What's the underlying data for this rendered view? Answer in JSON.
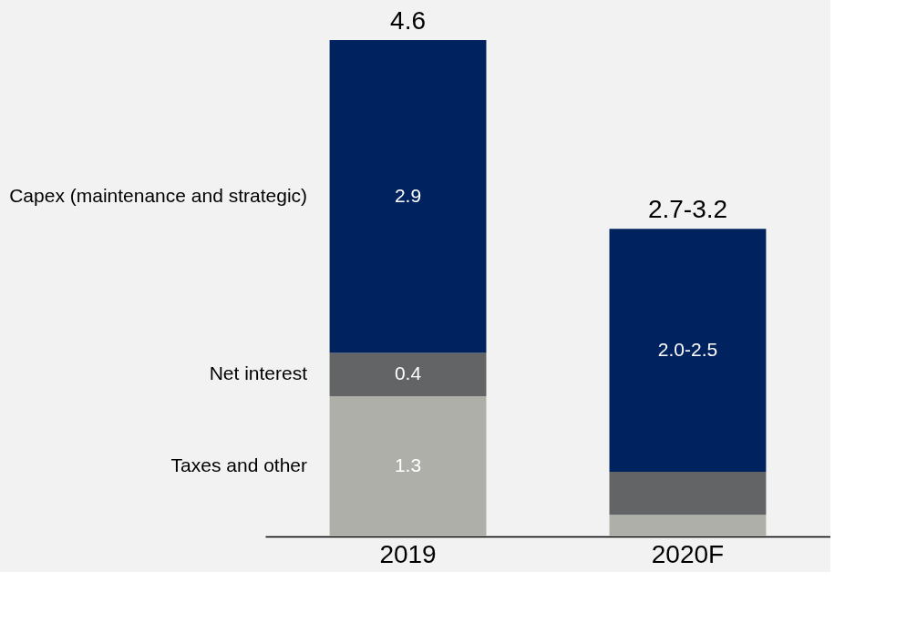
{
  "chart_data": {
    "type": "bar",
    "stacked": true,
    "categories": [
      "2019",
      "2020F"
    ],
    "series": [
      {
        "name": "Taxes and other",
        "color": "#afafa9",
        "values": [
          1.3,
          0.2
        ],
        "value_labels": [
          "1.3",
          null
        ]
      },
      {
        "name": "Net interest",
        "color": "#636466",
        "values": [
          0.4,
          0.4
        ],
        "value_labels": [
          "0.4",
          null
        ]
      },
      {
        "name": "Capex (maintenance and strategic)",
        "color": "#00235f",
        "values": [
          2.9,
          2.25
        ],
        "value_labels": [
          "2.9",
          "2.0-2.5"
        ]
      }
    ],
    "totals": [
      "4.6",
      "2.7-3.2"
    ],
    "tick_labels": "x"
  }
}
